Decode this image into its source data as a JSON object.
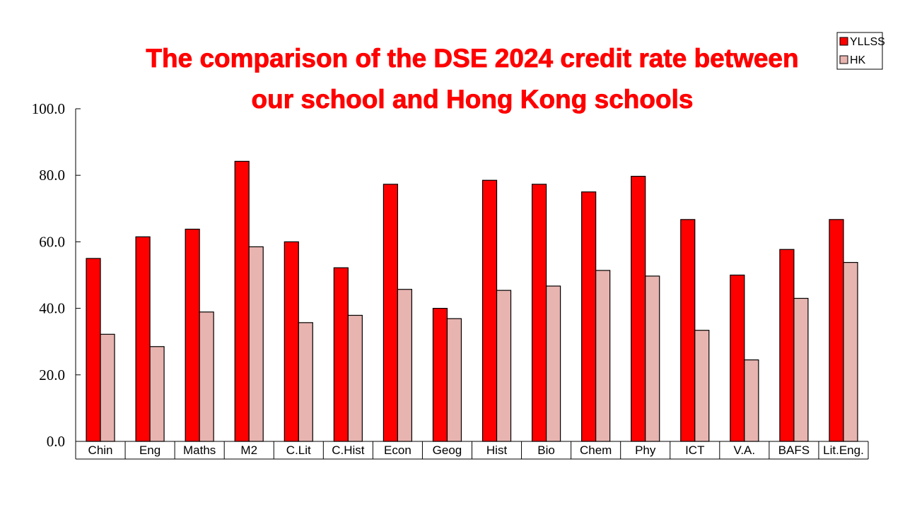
{
  "chart_data": {
    "type": "bar",
    "title_lines": [
      "The comparison of the DSE 2024 credit rate between",
      "our school and Hong Kong schools"
    ],
    "xlabel": "",
    "ylabel": "",
    "ylim": [
      0,
      100
    ],
    "yticks": [
      "0.0",
      "20.0",
      "40.0",
      "60.0",
      "80.0",
      "100.0"
    ],
    "grid": false,
    "legend_position": "top-right",
    "categories": [
      "Chin",
      "Eng",
      "Maths",
      "M2",
      "C.Lit",
      "C.Hist",
      "Econ",
      "Geog",
      "Hist",
      "Bio",
      "Chem",
      "Phy",
      "ICT",
      "V.A.",
      "BAFS",
      "Lit.Eng."
    ],
    "series": [
      {
        "name": "YLLSS",
        "color": "#ff0000",
        "values": [
          55.0,
          61.5,
          63.8,
          84.2,
          60.0,
          52.2,
          77.3,
          40.0,
          78.5,
          77.3,
          75.0,
          79.7,
          66.7,
          50.0,
          57.7,
          66.7
        ]
      },
      {
        "name": "HK",
        "color": "#e8b4b0",
        "values": [
          32.2,
          28.5,
          38.9,
          58.5,
          35.7,
          37.9,
          45.7,
          36.9,
          45.4,
          46.7,
          51.4,
          49.7,
          33.4,
          24.5,
          43.0,
          53.8
        ]
      }
    ]
  }
}
